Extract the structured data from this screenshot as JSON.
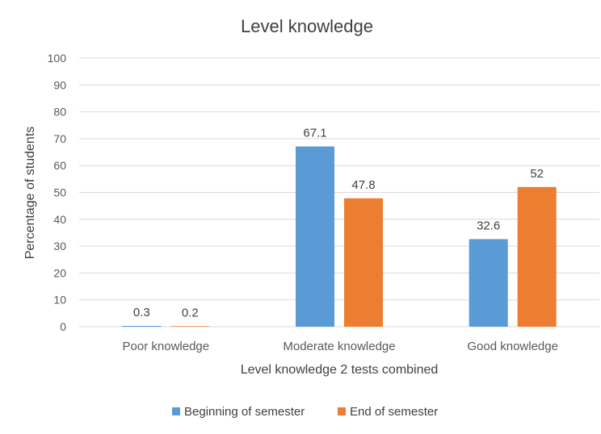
{
  "chart_data": {
    "type": "bar",
    "title": "Level knowledge",
    "xlabel": "Level knowledge 2 tests combined",
    "ylabel": "Percentage of students",
    "ylim": [
      0,
      100
    ],
    "yticks": [
      0,
      10,
      20,
      30,
      40,
      50,
      60,
      70,
      80,
      90,
      100
    ],
    "categories": [
      "Poor knowledge",
      "Moderate knowledge",
      "Good knowledge"
    ],
    "series": [
      {
        "name": "Beginning of semester",
        "values": [
          0.3,
          67.1,
          32.6
        ],
        "color": "#5B9BD5"
      },
      {
        "name": "End of semester",
        "values": [
          0.2,
          47.8,
          52
        ],
        "color": "#ED7D31"
      }
    ],
    "grid": true,
    "legend_position": "bottom"
  }
}
